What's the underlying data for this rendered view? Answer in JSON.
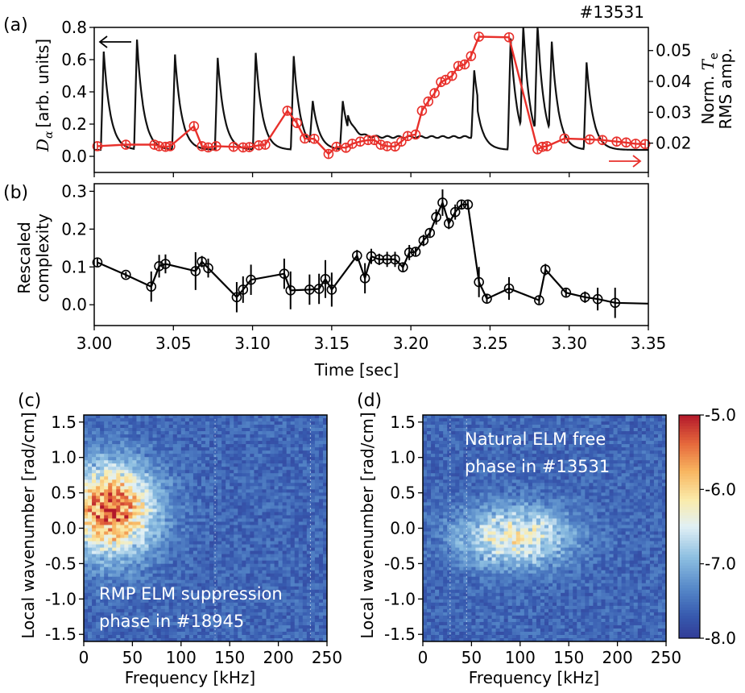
{
  "chart_data": [
    {
      "id": "a",
      "panel_label": "(a)",
      "shot_label": "#13531",
      "type": "line",
      "ylabel": "[arb. units]",
      "ylabel_sym": "D",
      "ylabel_sub": "α",
      "y2label_top": "Norm. ",
      "y2label_sym": "T",
      "y2label_sub": "e",
      "y2label_bottom": "RMS amp.",
      "xlim": [
        3.0,
        3.35
      ],
      "ylim": [
        -0.1,
        0.8
      ],
      "yticks": [
        "0.0",
        "0.2",
        "0.4",
        "0.6",
        "0.8"
      ],
      "y2lim": [
        0.0105,
        0.0575
      ],
      "y2ticks": [
        "0.02",
        "0.03",
        "0.04",
        "0.05"
      ],
      "series": [
        {
          "name": "D-alpha",
          "color": "#111111",
          "baseline": 0.04,
          "elms": [
            {
              "t": 3.006,
              "peak": 0.65
            },
            {
              "t": 3.027,
              "peak": 0.72
            },
            {
              "t": 3.051,
              "peak": 0.63
            },
            {
              "t": 3.078,
              "peak": 0.61
            },
            {
              "t": 3.102,
              "peak": 0.64
            },
            {
              "t": 3.126,
              "peak": 0.62
            },
            {
              "t": 3.138,
              "peak": 0.31
            },
            {
              "t": 3.157,
              "peak": 0.34
            },
            {
              "t": 3.24,
              "peak": 0.45
            },
            {
              "t": 3.263,
              "peak": 0.73
            },
            {
              "t": 3.271,
              "peak": 0.71
            },
            {
              "t": 3.28,
              "peak": 0.73
            },
            {
              "t": 3.289,
              "peak": 0.62
            },
            {
              "t": 3.311,
              "peak": 0.58
            }
          ],
          "elm_free": {
            "t_start": 3.16,
            "t_end": 3.242,
            "level": 0.12
          }
        },
        {
          "name": "Norm. Te RMS amp.",
          "axis": "right",
          "color": "#e8302b",
          "x": [
            3.002,
            3.02,
            3.038,
            3.041,
            3.045,
            3.048,
            3.063,
            3.068,
            3.072,
            3.077,
            3.088,
            3.094,
            3.098,
            3.104,
            3.108,
            3.122,
            3.128,
            3.133,
            3.139,
            3.148,
            3.153,
            3.159,
            3.163,
            3.168,
            3.173,
            3.177,
            3.181,
            3.185,
            3.19,
            3.194,
            3.198,
            3.203,
            3.207,
            3.211,
            3.215,
            3.219,
            3.222,
            3.226,
            3.23,
            3.234,
            3.238,
            3.243,
            3.262,
            3.28,
            3.283,
            3.286,
            3.297,
            3.313,
            3.321,
            3.33,
            3.336,
            3.342,
            3.348
          ],
          "y": [
            0.019,
            0.0195,
            0.0195,
            0.019,
            0.0188,
            0.019,
            0.0255,
            0.019,
            0.0186,
            0.019,
            0.0188,
            0.0186,
            0.0187,
            0.0193,
            0.0195,
            0.0305,
            0.0265,
            0.0215,
            0.0214,
            0.0165,
            0.0188,
            0.0185,
            0.0198,
            0.0205,
            0.021,
            0.021,
            0.0195,
            0.019,
            0.0189,
            0.0205,
            0.0223,
            0.0228,
            0.0305,
            0.0335,
            0.0362,
            0.0398,
            0.0405,
            0.0418,
            0.045,
            0.0455,
            0.0482,
            0.0545,
            0.0543,
            0.018,
            0.0188,
            0.019,
            0.0215,
            0.0212,
            0.021,
            0.0205,
            0.0202,
            0.0198,
            0.0197
          ]
        }
      ],
      "arrow_left_color": "#000000",
      "arrow_right_color": "#e8302b"
    },
    {
      "id": "b",
      "panel_label": "(b)",
      "type": "line",
      "xlabel": "Time [sec]",
      "ylabel_line1": "Rescaled",
      "ylabel_line2": "complexity",
      "xlim": [
        3.0,
        3.35
      ],
      "xticks": [
        "3.00",
        "3.05",
        "3.10",
        "3.15",
        "3.20",
        "3.25",
        "3.30",
        "3.35"
      ],
      "ylim": [
        -0.055,
        0.32
      ],
      "yticks": [
        "0.0",
        "0.1",
        "0.2",
        "0.3"
      ],
      "series": [
        {
          "name": "Rescaled complexity",
          "color": "#000000",
          "x": [
            3.002,
            3.02,
            3.036,
            3.041,
            3.045,
            3.064,
            3.068,
            3.072,
            3.09,
            3.094,
            3.099,
            3.12,
            3.124,
            3.136,
            3.142,
            3.146,
            3.15,
            3.166,
            3.171,
            3.175,
            3.18,
            3.185,
            3.19,
            3.195,
            3.199,
            3.203,
            3.208,
            3.212,
            3.216,
            3.22,
            3.224,
            3.228,
            3.232,
            3.236,
            3.243,
            3.248,
            3.262,
            3.281,
            3.285,
            3.298,
            3.31,
            3.318,
            3.329
          ],
          "y": [
            0.112,
            0.079,
            0.048,
            0.102,
            0.108,
            0.089,
            0.114,
            0.097,
            0.02,
            0.04,
            0.066,
            0.082,
            0.038,
            0.04,
            0.042,
            0.068,
            0.04,
            0.13,
            0.07,
            0.128,
            0.12,
            0.12,
            0.12,
            0.099,
            0.138,
            0.14,
            0.17,
            0.19,
            0.232,
            0.27,
            0.215,
            0.245,
            0.265,
            0.265,
            0.06,
            0.016,
            0.043,
            0.012,
            0.093,
            0.032,
            0.02,
            0.015,
            0.005
          ],
          "err": [
            0.01,
            0.008,
            0.04,
            0.03,
            0.025,
            0.05,
            0.015,
            0.025,
            0.04,
            0.035,
            0.04,
            0.04,
            0.05,
            0.04,
            0.04,
            0.05,
            0.045,
            0.015,
            0.04,
            0.02,
            0.015,
            0.02,
            0.02,
            0.01,
            0.02,
            0.01,
            0.015,
            0.01,
            0.02,
            0.035,
            0.015,
            0.02,
            0.01,
            0.01,
            0.04,
            0.01,
            0.03,
            0.01,
            0.015,
            0.01,
            0.015,
            0.03,
            0.04
          ]
        }
      ]
    },
    {
      "id": "c",
      "panel_label": "(c)",
      "type": "heatmap",
      "xlabel": "Frequency [kHz]",
      "ylabel": "Local wavenumber [rad/cm]",
      "xlim": [
        0,
        250
      ],
      "xticks": [
        "0",
        "50",
        "100",
        "150",
        "200",
        "250"
      ],
      "ylim": [
        -1.6,
        1.6
      ],
      "yticks": [
        "1.5",
        "1.0",
        "0.5",
        "0.0",
        "-0.5",
        "-1.0",
        "-1.5"
      ],
      "annotation_line1": "RMP ELM suppression",
      "annotation_line2": "phase in #18945",
      "hotspot": {
        "f": 28,
        "k": 0.25,
        "sf": 32,
        "sk": 0.45,
        "amp": 2.2
      }
    },
    {
      "id": "d",
      "panel_label": "(d)",
      "type": "heatmap",
      "xlabel": "Frequency [kHz]",
      "ylabel": "Local wavenumber [rad/cm]",
      "xlim": [
        0,
        250
      ],
      "xticks": [
        "0",
        "50",
        "100",
        "150",
        "200",
        "250"
      ],
      "ylim": [
        -1.6,
        1.6
      ],
      "yticks": [
        "1.5",
        "1.0",
        "0.5",
        "0.0",
        "-0.5",
        "-1.0",
        "-1.5"
      ],
      "annotation_line1": "Natural ELM free",
      "annotation_line2": "phase in #13531",
      "hotspot": {
        "f": 95,
        "k": -0.12,
        "sf": 40,
        "sk": 0.3,
        "amp": 1.3
      },
      "colorbar": {
        "ticks": [
          "-5.0",
          "-6.0",
          "-7.0",
          "-8.0"
        ],
        "range": [
          -8.0,
          -5.0
        ]
      }
    }
  ]
}
